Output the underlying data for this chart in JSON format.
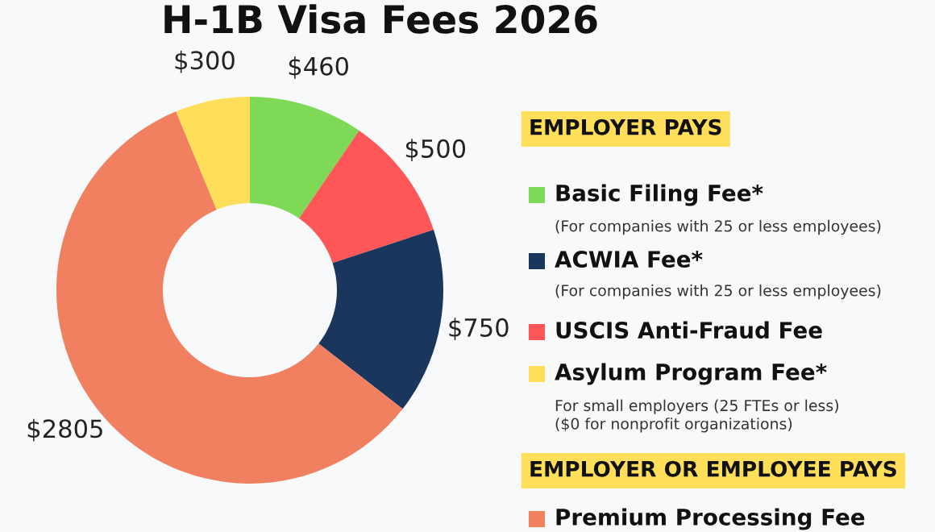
{
  "chart_data": {
    "type": "donut",
    "title": "H-1B Visa Fees 2026",
    "categories": [
      "Basic Filing Fee*",
      "USCIS Anti-Fraud Fee",
      "ACWIA Fee*",
      "Premium Processing Fee",
      "Asylum Program Fee*"
    ],
    "values": [
      460,
      500,
      750,
      2805,
      300
    ],
    "value_labels": [
      "$460",
      "$500",
      "$750",
      "$2805",
      "$300"
    ],
    "colors": [
      "#7ed957",
      "#ff5757",
      "#1b365d",
      "#f08060",
      "#ffde59"
    ],
    "legend": "right",
    "annotations": [
      "EMPLOYER PAYS",
      "(For companies with 25 or less employees)",
      "(For companies with 25 or less employees)",
      "For small employers (25 FTEs or less)\n($0 for nonprofit organizations)",
      "EMPLOYER OR EMPLOYEE PAYS"
    ]
  }
}
